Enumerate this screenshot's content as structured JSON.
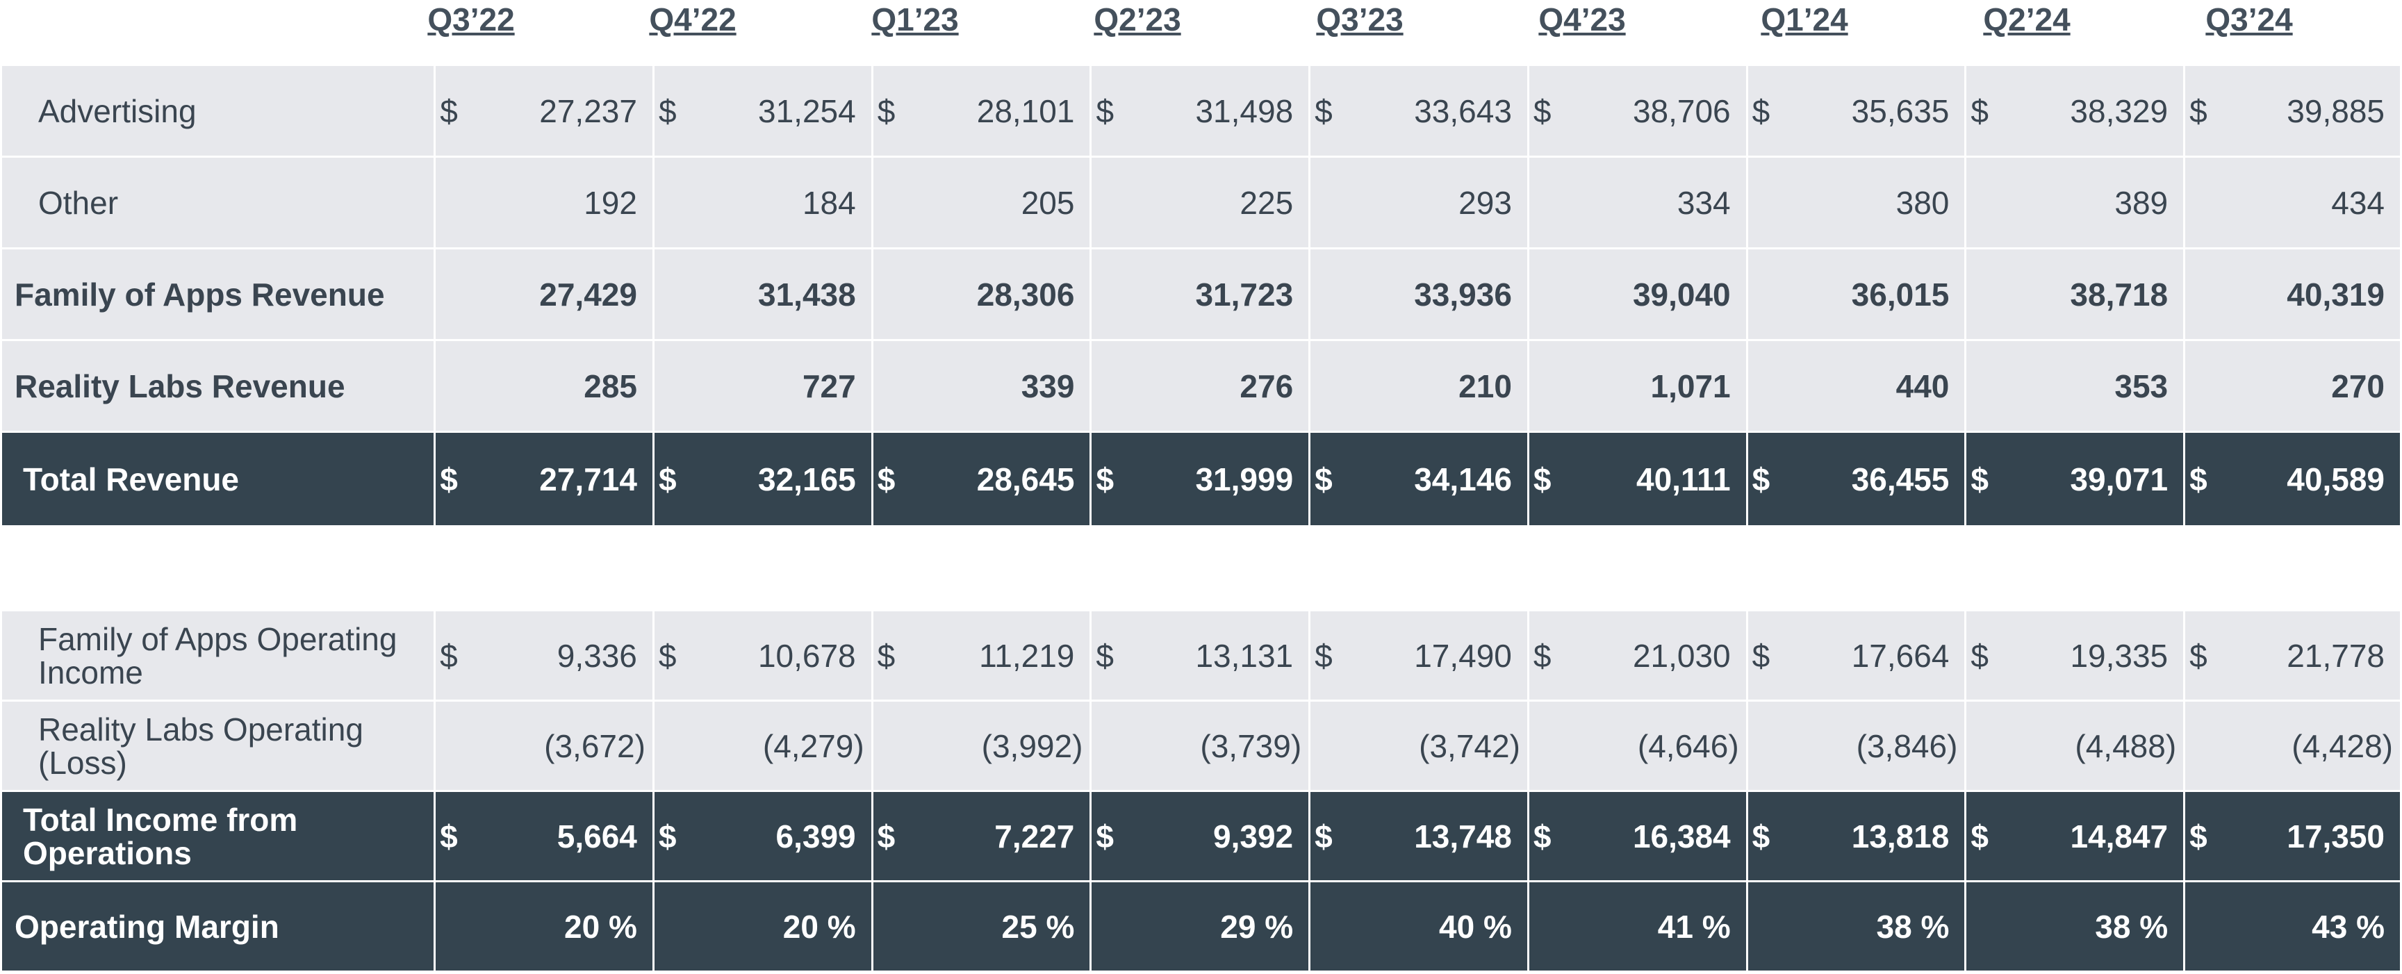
{
  "quarters": [
    "Q3’22",
    "Q4’22",
    "Q1’23",
    "Q2’23",
    "Q3’23",
    "Q4’23",
    "Q1’24",
    "Q2’24",
    "Q3’24"
  ],
  "currency_symbol": "$",
  "revenue_rows": [
    {
      "label": "Advertising",
      "values": [
        "27,237",
        "31,254",
        "28,101",
        "31,498",
        "33,643",
        "38,706",
        "35,635",
        "38,329",
        "39,885"
      ],
      "dollar": true,
      "style": "light",
      "indent": true
    },
    {
      "label": "Other",
      "values": [
        "192",
        "184",
        "205",
        "225",
        "293",
        "334",
        "380",
        "389",
        "434"
      ],
      "dollar": false,
      "style": "light",
      "indent": true
    },
    {
      "label": "Family of Apps Revenue",
      "values": [
        "27,429",
        "31,438",
        "28,306",
        "31,723",
        "33,936",
        "39,040",
        "36,015",
        "38,718",
        "40,319"
      ],
      "dollar": false,
      "style": "light-bold",
      "indent": false
    },
    {
      "label": "Reality Labs Revenue",
      "values": [
        "285",
        "727",
        "339",
        "276",
        "210",
        "1,071",
        "440",
        "353",
        "270"
      ],
      "dollar": false,
      "style": "light-bold",
      "indent": false
    },
    {
      "label": "Total Revenue",
      "values": [
        "27,714",
        "32,165",
        "28,645",
        "31,999",
        "34,146",
        "40,111",
        "36,455",
        "39,071",
        "40,589"
      ],
      "dollar": true,
      "style": "dark",
      "indent": false
    }
  ],
  "income_rows": [
    {
      "label": "Family of Apps Operating Income",
      "values": [
        "9,336",
        "10,678",
        "11,219",
        "13,131",
        "17,490",
        "21,030",
        "17,664",
        "19,335",
        "21,778"
      ],
      "dollar": true,
      "style": "light",
      "indent": true
    },
    {
      "label": "Reality Labs Operating (Loss)",
      "values": [
        "(3,672)",
        "(4,279)",
        "(3,992)",
        "(3,739)",
        "(3,742)",
        "(4,646)",
        "(3,846)",
        "(4,488)",
        "(4,428)"
      ],
      "dollar": false,
      "style": "light",
      "indent": true
    },
    {
      "label": "Total Income from Operations",
      "values": [
        "5,664",
        "6,399",
        "7,227",
        "9,392",
        "13,748",
        "16,384",
        "13,818",
        "14,847",
        "17,350"
      ],
      "dollar": true,
      "style": "dark",
      "indent": false
    },
    {
      "label": "Operating Margin",
      "values": [
        "20 %",
        "20 %",
        "25 %",
        "29 %",
        "40 %",
        "41 %",
        "38 %",
        "38 %",
        "43 %"
      ],
      "dollar": false,
      "style": "dark-margin",
      "indent": false
    }
  ],
  "colors": {
    "dark_row": "#34444f",
    "light_row": "#e7e8ec",
    "text": "#3a4550"
  }
}
